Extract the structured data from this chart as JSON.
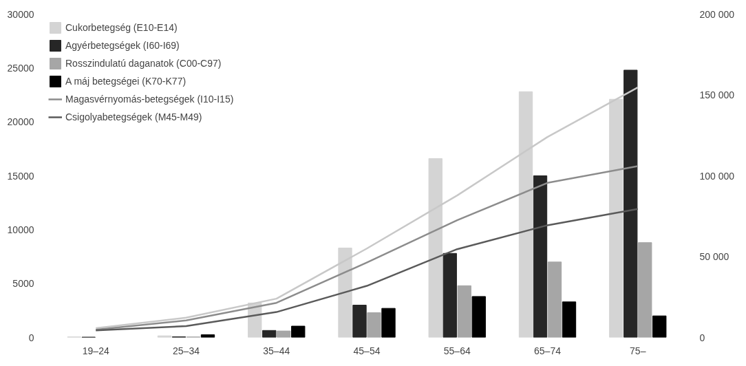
{
  "chart_data": {
    "type": "bar",
    "categories": [
      "19–24",
      "25–34",
      "35–44",
      "45–54",
      "55–64",
      "65–74",
      "75–"
    ],
    "series": [
      {
        "name": "Cukorbetegség (E10-E14)",
        "color": "#d4d4d4",
        "values": [
          50,
          150,
          3200,
          8300,
          16600,
          22800,
          22100
        ]
      },
      {
        "name": "Agyérbetegségek (I60-I69)",
        "color": "#262626",
        "values": [
          30,
          60,
          650,
          3000,
          7800,
          15000,
          24800
        ]
      },
      {
        "name": "Rosszindulatú daganatok (C00-C97)",
        "color": "#a6a6a6",
        "values": [
          null,
          50,
          600,
          2300,
          4800,
          7000,
          8800
        ]
      },
      {
        "name": "A máj betegségei (K70-K77)",
        "color": "#000000",
        "values": [
          null,
          250,
          1050,
          2700,
          3800,
          3300,
          2000
        ]
      },
      {
        "type": "line",
        "axis": "y2",
        "color": "#c8c8c8",
        "values": [
          5700,
          12200,
          24000,
          55000,
          87800,
          124000,
          154600
        ]
      },
      {
        "type": "line",
        "axis": "y2",
        "name": "Magasvérnyomás-betegségek (I10-I15)",
        "color": "#8c8c8c",
        "values": [
          4800,
          10500,
          21400,
          46300,
          72500,
          95600,
          106000
        ]
      },
      {
        "type": "line",
        "axis": "y2",
        "name": "Csigolyabetegségek (M45-M49)",
        "color": "#5a5a5a",
        "values": [
          4400,
          7000,
          15700,
          31900,
          54600,
          69400,
          79500
        ]
      }
    ],
    "ylim": [
      0,
      30000
    ],
    "yticks": [
      0,
      5000,
      10000,
      15000,
      20000,
      25000,
      30000
    ],
    "y2lim": [
      0,
      200000
    ],
    "y2ticks": [
      {
        "value": 0,
        "label": "0"
      },
      {
        "value": 50000,
        "label": "50 000"
      },
      {
        "value": 100000,
        "label": "100 000"
      },
      {
        "value": 150000,
        "label": "150 000"
      },
      {
        "value": 200000,
        "label": "200 000"
      }
    ],
    "grid": false,
    "legend": "top left"
  }
}
